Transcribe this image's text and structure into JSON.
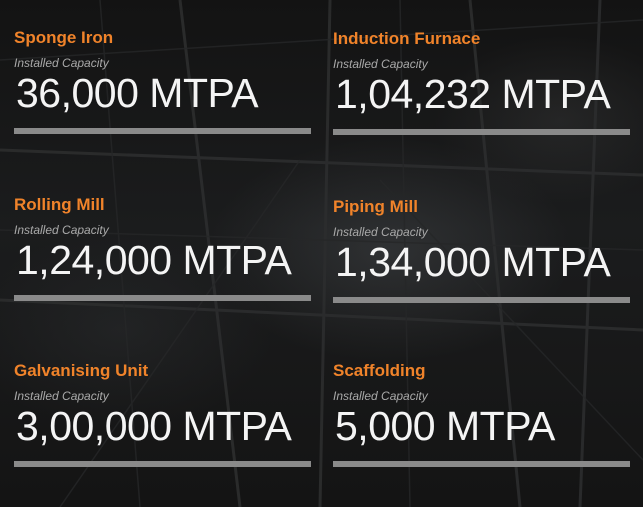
{
  "cards": [
    {
      "name": "Sponge Iron",
      "label": "Installed Capacity",
      "value": "36,000 MTPA"
    },
    {
      "name": "Induction Furnace",
      "label": "Installed Capacity",
      "value": "1,04,232 MTPA"
    },
    {
      "name": "Rolling Mill",
      "label": "Installed Capacity",
      "value": "1,24,000 MTPA"
    },
    {
      "name": "Piping Mill",
      "label": "Installed Capacity",
      "value": "1,34,000 MTPA"
    },
    {
      "name": "Galvanising Unit",
      "label": "Installed Capacity",
      "value": "3,00,000 MTPA"
    },
    {
      "name": "Scaffolding",
      "label": "Installed Capacity",
      "value": "5,000 MTPA"
    }
  ],
  "colors": {
    "accent": "#f0832a",
    "value_text": "#f4f4f4",
    "label_text": "#a9a9a9",
    "bar": "#8a8a8a",
    "background": "#161616"
  }
}
